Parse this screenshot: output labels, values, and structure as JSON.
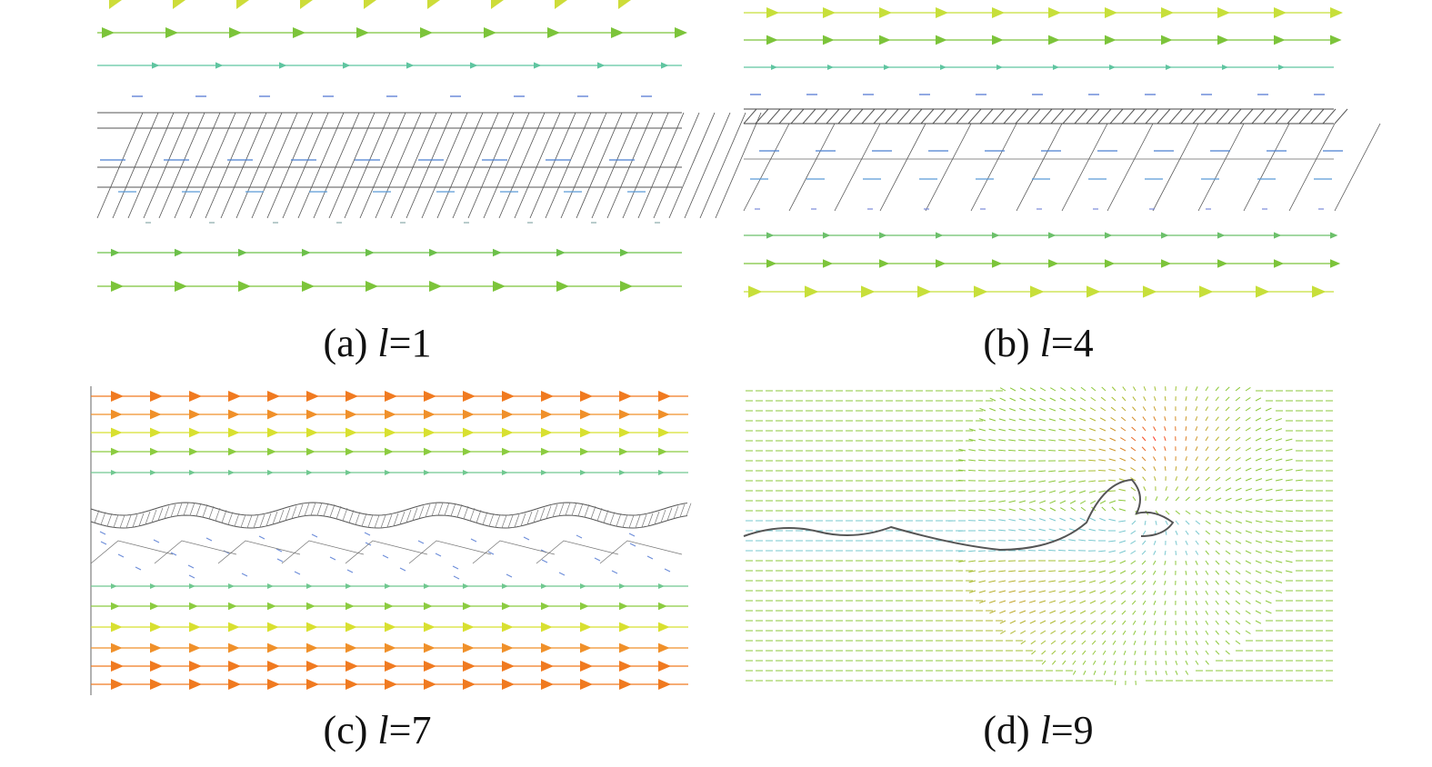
{
  "panels": [
    {
      "prefix": "(a)",
      "variable": "l",
      "suffix": "=1"
    },
    {
      "prefix": "(b)",
      "variable": "l",
      "suffix": "=4"
    },
    {
      "prefix": "(c)",
      "variable": "l",
      "suffix": "=7"
    },
    {
      "prefix": "(d)",
      "variable": "l",
      "suffix": "=9"
    }
  ]
}
